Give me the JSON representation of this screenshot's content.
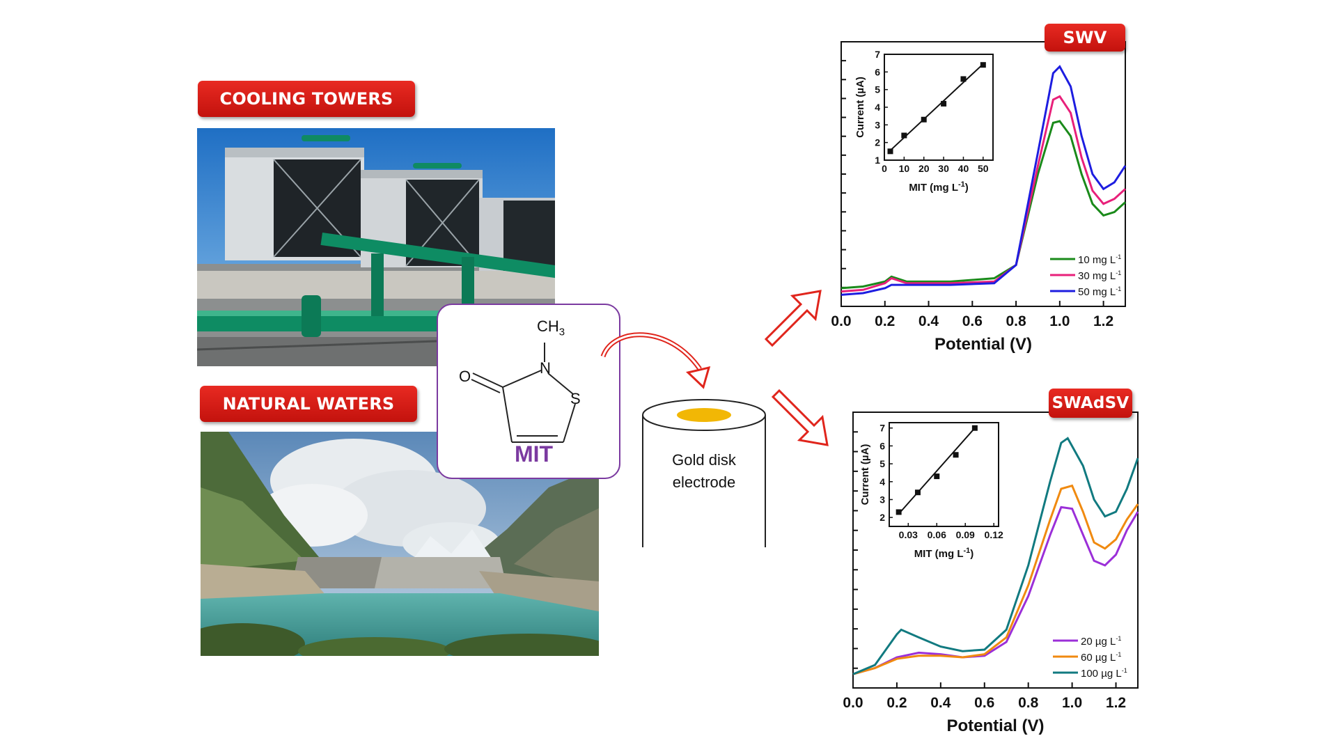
{
  "labels": {
    "cooling_towers": "COOLING TOWERS",
    "natural_waters": "NATURAL WATERS",
    "swv": "SWV",
    "swadsv": "SWAdSV"
  },
  "molecule": {
    "name": "MIT",
    "ch3": "CH",
    "ch3_sub": "3",
    "n": "N",
    "s": "S",
    "o": "O"
  },
  "electrode": {
    "line1": "Gold disk",
    "line2": "electrode"
  },
  "colors": {
    "label_red": "#d81e16",
    "mit_purple": "#7b3aa0",
    "arrow_red": "#e0251c",
    "gold": "#f2b705"
  },
  "chart_data": [
    {
      "type": "line",
      "title": "SWV",
      "xlabel": "Potential (V)",
      "x_ticks": [
        "0.0",
        "0.2",
        "0.4",
        "0.6",
        "0.8",
        "1.0",
        "1.2"
      ],
      "xlim": [
        0.0,
        1.3
      ],
      "series": [
        {
          "name": "10 mg L-1",
          "color": "#1a8a1a",
          "x": [
            0.0,
            0.1,
            0.2,
            0.23,
            0.3,
            0.5,
            0.7,
            0.8,
            0.9,
            0.97,
            1.0,
            1.05,
            1.1,
            1.15,
            1.2,
            1.25,
            1.3
          ],
          "y": [
            0.06,
            0.07,
            0.1,
            0.13,
            0.1,
            0.1,
            0.12,
            0.2,
            0.75,
            1.06,
            1.07,
            0.98,
            0.75,
            0.57,
            0.5,
            0.52,
            0.58
          ]
        },
        {
          "name": "30 mg L-1",
          "color": "#e8207a",
          "x": [
            0.0,
            0.1,
            0.2,
            0.23,
            0.3,
            0.5,
            0.7,
            0.8,
            0.9,
            0.97,
            1.0,
            1.05,
            1.1,
            1.15,
            1.2,
            1.25,
            1.3
          ],
          "y": [
            0.04,
            0.05,
            0.09,
            0.12,
            0.09,
            0.09,
            0.1,
            0.2,
            0.8,
            1.2,
            1.22,
            1.12,
            0.85,
            0.65,
            0.57,
            0.6,
            0.66
          ]
        },
        {
          "name": "50 mg L-1",
          "color": "#1d1de0",
          "x": [
            0.0,
            0.1,
            0.2,
            0.23,
            0.3,
            0.5,
            0.7,
            0.8,
            0.9,
            0.97,
            1.0,
            1.05,
            1.1,
            1.15,
            1.2,
            1.25,
            1.3
          ],
          "y": [
            0.02,
            0.03,
            0.06,
            0.08,
            0.08,
            0.08,
            0.09,
            0.2,
            0.88,
            1.36,
            1.4,
            1.28,
            0.98,
            0.75,
            0.66,
            0.7,
            0.8
          ]
        }
      ],
      "inset": {
        "xlabel_text": "MIT (mg L",
        "xlabel_sup": "-1",
        "ylabel": "Current (µA)",
        "x_ticks": [
          "0",
          "10",
          "20",
          "30",
          "40",
          "50"
        ],
        "y_ticks": [
          "1",
          "2",
          "3",
          "4",
          "5",
          "6",
          "7"
        ],
        "xlim": [
          0,
          55
        ],
        "ylim": [
          1,
          7
        ],
        "points_x": [
          3,
          10,
          20,
          30,
          40,
          50
        ],
        "points_y": [
          1.5,
          2.4,
          3.3,
          4.2,
          5.6,
          6.4
        ],
        "fit": [
          [
            3,
            1.55
          ],
          [
            50,
            6.45
          ]
        ]
      }
    },
    {
      "type": "line",
      "title": "SWAdSV",
      "xlabel": "Potential (V)",
      "x_ticks": [
        "0.0",
        "0.2",
        "0.4",
        "0.6",
        "0.8",
        "1.0",
        "1.2"
      ],
      "xlim": [
        0.0,
        1.3
      ],
      "series": [
        {
          "name": "20 µg L-1",
          "color": "#9b2fd8",
          "x": [
            0.0,
            0.1,
            0.2,
            0.3,
            0.4,
            0.5,
            0.6,
            0.7,
            0.8,
            0.9,
            0.95,
            1.0,
            1.05,
            1.1,
            1.15,
            1.2,
            1.25,
            1.3
          ],
          "y": [
            0.04,
            0.08,
            0.15,
            0.18,
            0.17,
            0.15,
            0.16,
            0.25,
            0.55,
            0.95,
            1.13,
            1.12,
            0.95,
            0.78,
            0.75,
            0.82,
            0.98,
            1.1
          ]
        },
        {
          "name": "60 µg L-1",
          "color": "#f08a10",
          "x": [
            0.0,
            0.1,
            0.2,
            0.3,
            0.4,
            0.5,
            0.6,
            0.7,
            0.8,
            0.9,
            0.95,
            1.0,
            1.05,
            1.1,
            1.15,
            1.2,
            1.25,
            1.3
          ],
          "y": [
            0.04,
            0.08,
            0.14,
            0.16,
            0.16,
            0.15,
            0.17,
            0.28,
            0.62,
            1.05,
            1.25,
            1.27,
            1.1,
            0.9,
            0.86,
            0.92,
            1.05,
            1.15
          ]
        },
        {
          "name": "100 µg L-1",
          "color": "#117a80",
          "x": [
            0.0,
            0.1,
            0.2,
            0.22,
            0.3,
            0.4,
            0.5,
            0.6,
            0.7,
            0.8,
            0.9,
            0.95,
            0.98,
            1.05,
            1.1,
            1.15,
            1.2,
            1.25,
            1.3
          ],
          "y": [
            0.04,
            0.1,
            0.3,
            0.33,
            0.28,
            0.22,
            0.19,
            0.2,
            0.33,
            0.75,
            1.3,
            1.55,
            1.58,
            1.4,
            1.18,
            1.07,
            1.1,
            1.25,
            1.45
          ]
        }
      ],
      "inset": {
        "xlabel_text": "MIT (mg L",
        "xlabel_sup": "-1",
        "ylabel": "Current (µA)",
        "x_ticks": [
          "0.03",
          "0.06",
          "0.09",
          "0.12"
        ],
        "y_ticks": [
          "2",
          "3",
          "4",
          "5",
          "6",
          "7"
        ],
        "xlim": [
          0.01,
          0.125
        ],
        "ylim": [
          1.5,
          7.3
        ],
        "points_x": [
          0.02,
          0.04,
          0.06,
          0.08,
          0.1
        ],
        "points_y": [
          2.3,
          3.4,
          4.3,
          5.5,
          7.0
        ],
        "fit": [
          [
            0.02,
            2.2
          ],
          [
            0.1,
            7.0
          ]
        ]
      }
    }
  ]
}
